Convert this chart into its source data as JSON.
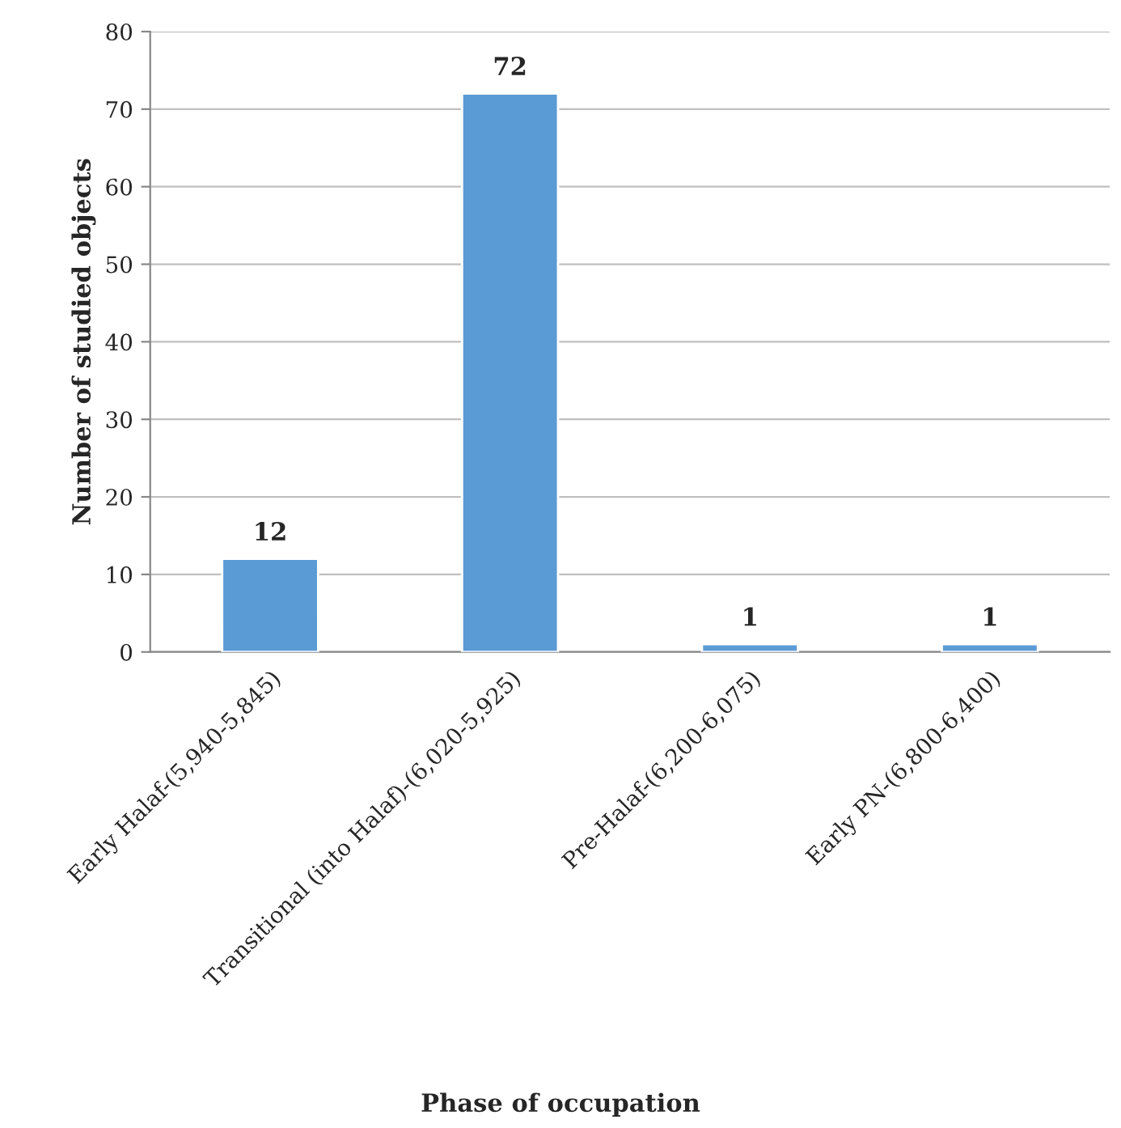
{
  "chart_data": {
    "type": "bar",
    "categories": [
      "Early Halaf-(5,940-5,845)",
      "Transitional (into Halaf)-(6,020-5,925)",
      "Pre-Halaf-(6,200-6,075)",
      "Early PN-(6,800-6,400)"
    ],
    "values": [
      12,
      72,
      1,
      1
    ],
    "color": "#5b9bd5",
    "xlabel": "Phase of occupation",
    "ylabel": "Number of studied objects",
    "ylim": [
      0,
      80
    ],
    "yticks": [
      0,
      10,
      20,
      30,
      40,
      50,
      60,
      70,
      80
    ],
    "grid": "y",
    "data_labels": true
  }
}
